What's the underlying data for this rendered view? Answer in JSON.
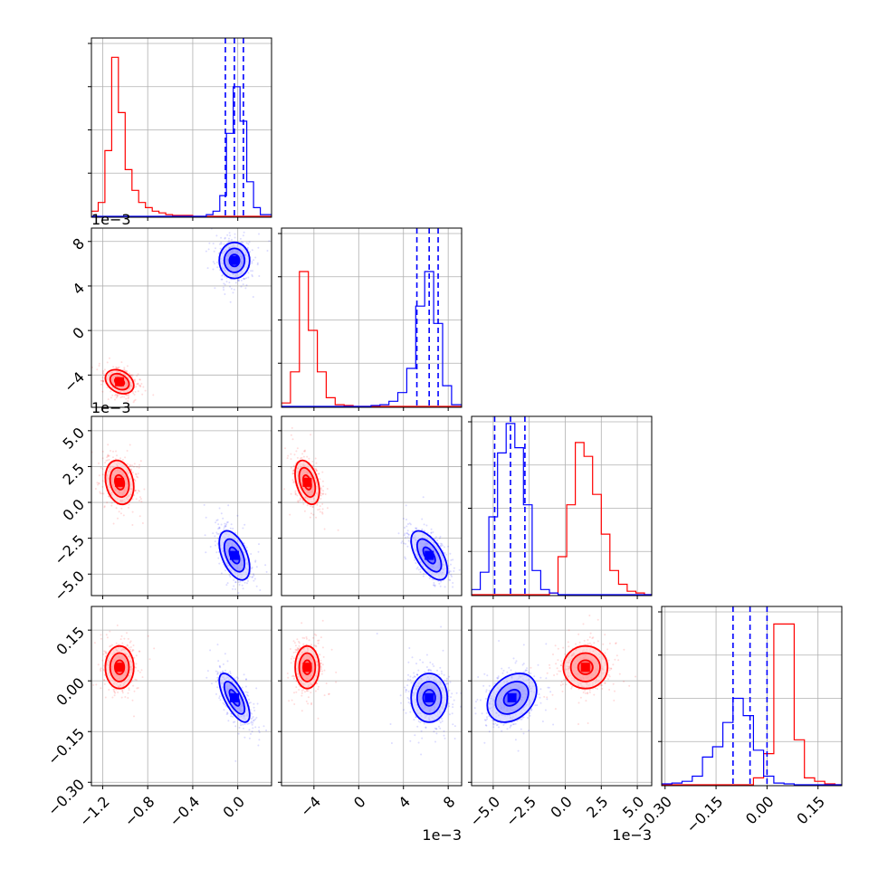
{
  "colors": {
    "red": "#ff0000",
    "blue": "#0000ff",
    "grid": "#b0b0b0",
    "quantile": "#0000ff"
  },
  "chart_data": {
    "type": "corner",
    "grid": true,
    "params": [
      {
        "range": [
          -1.3,
          0.3
        ],
        "ticks": [
          -1.2,
          -0.8,
          -0.4,
          0.0
        ],
        "tick_labels": [
          "−1.2",
          "−0.8",
          "−0.4",
          "0.0"
        ],
        "offset": ""
      },
      {
        "range": [
          -6.9,
          9.2
        ],
        "ticks": [
          -4,
          0,
          4,
          8
        ],
        "tick_labels": [
          "−4",
          "0",
          "4",
          "8"
        ],
        "offset": "1e−3"
      },
      {
        "range": [
          -6.5,
          6.0
        ],
        "ticks": [
          -5.0,
          -2.5,
          0.0,
          2.5,
          5.0
        ],
        "tick_labels": [
          "−5.0",
          "−2.5",
          "0.0",
          "2.5",
          "5.0"
        ],
        "offset": "1e−3"
      },
      {
        "range": [
          -0.31,
          0.22
        ],
        "ticks": [
          -0.3,
          -0.15,
          0.0,
          0.15
        ],
        "tick_labels": [
          "−0.30",
          "−0.15",
          "0.00",
          "0.15"
        ],
        "offset": ""
      }
    ],
    "populations": [
      {
        "color": "red",
        "means": [
          -1.05,
          -4.6,
          1.4,
          0.04
        ],
        "sigmas": [
          0.07,
          0.6,
          0.85,
          0.035
        ],
        "correlations": [
          [
            0,
            1,
            -0.3
          ],
          [
            1,
            2,
            -0.4
          ],
          [
            0,
            2,
            -0.2
          ]
        ]
      },
      {
        "color": "blue",
        "means": [
          -0.03,
          6.3,
          -3.7,
          -0.05
        ],
        "sigmas": [
          0.075,
          0.9,
          0.95,
          0.04
        ],
        "correlations": [
          [
            1,
            2,
            -0.6
          ],
          [
            0,
            3,
            -0.7
          ],
          [
            0,
            2,
            -0.5
          ],
          [
            2,
            3,
            0.3
          ]
        ]
      }
    ],
    "quantiles": [
      [
        -0.11,
        -0.03,
        0.05
      ],
      [
        5.2,
        6.3,
        7.1
      ],
      [
        -4.9,
        -3.8,
        -2.8
      ],
      [
        -0.1,
        -0.05,
        0.0
      ]
    ],
    "histograms": [
      {
        "bins": [
          -1.3,
          -1.24,
          -1.18,
          -1.12,
          -1.06,
          -1.0,
          -0.94,
          -0.88,
          -0.82,
          -0.76,
          -0.7,
          -0.64,
          -0.58,
          -0.52,
          -0.46,
          -0.4,
          -0.34,
          -0.28,
          -0.22,
          -0.16,
          -0.1,
          -0.04,
          0.02,
          0.08,
          0.14,
          0.2,
          0.26,
          0.3
        ],
        "red": [
          0.03,
          0.08,
          0.38,
          0.92,
          0.6,
          0.27,
          0.15,
          0.08,
          0.05,
          0.03,
          0.02,
          0.01,
          0.005,
          0.005,
          0.005,
          0,
          0,
          0,
          0,
          0,
          0,
          0,
          0,
          0,
          0,
          0,
          0
        ],
        "blue": [
          0,
          0,
          0,
          0,
          0,
          0,
          0,
          0,
          0,
          0,
          0,
          0,
          0,
          0,
          0,
          0,
          0,
          0.01,
          0.03,
          0.12,
          0.48,
          0.75,
          0.55,
          0.2,
          0.05,
          0.01,
          0.01
        ]
      },
      {
        "bins": [
          -6.9,
          -6.1,
          -5.3,
          -4.5,
          -3.7,
          -2.9,
          -2.1,
          -1.3,
          -0.5,
          0.3,
          1.1,
          1.9,
          2.7,
          3.5,
          4.3,
          5.1,
          5.9,
          6.7,
          7.5,
          8.3,
          9.2
        ],
        "red": [
          0.02,
          0.2,
          0.78,
          0.44,
          0.2,
          0.05,
          0.01,
          0.005,
          0,
          0,
          0,
          0,
          0,
          0,
          0,
          0,
          0,
          0,
          0,
          0
        ],
        "blue": [
          0,
          0,
          0,
          0,
          0,
          0,
          0,
          0,
          0,
          0,
          0.005,
          0.01,
          0.03,
          0.08,
          0.22,
          0.58,
          0.78,
          0.48,
          0.12,
          0.01
        ]
      },
      {
        "bins": [
          -6.5,
          -5.9,
          -5.3,
          -4.7,
          -4.1,
          -3.5,
          -2.9,
          -2.3,
          -1.7,
          -1.1,
          -0.5,
          0.1,
          0.7,
          1.3,
          1.9,
          2.5,
          3.1,
          3.7,
          4.3,
          4.9,
          5.5,
          6.0
        ],
        "red": [
          0,
          0,
          0,
          0,
          0,
          0,
          0,
          0,
          0,
          0.01,
          0.22,
          0.52,
          0.88,
          0.8,
          0.58,
          0.35,
          0.14,
          0.06,
          0.02,
          0.01,
          0
        ],
        "blue": [
          0.03,
          0.13,
          0.45,
          0.82,
          0.99,
          0.85,
          0.52,
          0.14,
          0.03,
          0.01,
          0,
          0,
          0,
          0,
          0,
          0,
          0,
          0,
          0,
          0,
          0
        ]
      },
      {
        "bins": [
          -0.31,
          -0.28,
          -0.25,
          -0.22,
          -0.19,
          -0.16,
          -0.13,
          -0.1,
          -0.07,
          -0.04,
          -0.01,
          0.02,
          0.05,
          0.08,
          0.11,
          0.14,
          0.17,
          0.2,
          0.22
        ],
        "red": [
          0,
          0,
          0,
          0,
          0,
          0,
          0,
          0,
          0,
          0.04,
          0.18,
          0.93,
          0.93,
          0.26,
          0.04,
          0.02,
          0.005,
          0
        ],
        "blue": [
          0.005,
          0.01,
          0.02,
          0.05,
          0.16,
          0.22,
          0.36,
          0.5,
          0.4,
          0.2,
          0.05,
          0.01,
          0.005,
          0,
          0,
          0,
          0,
          0
        ]
      }
    ]
  }
}
